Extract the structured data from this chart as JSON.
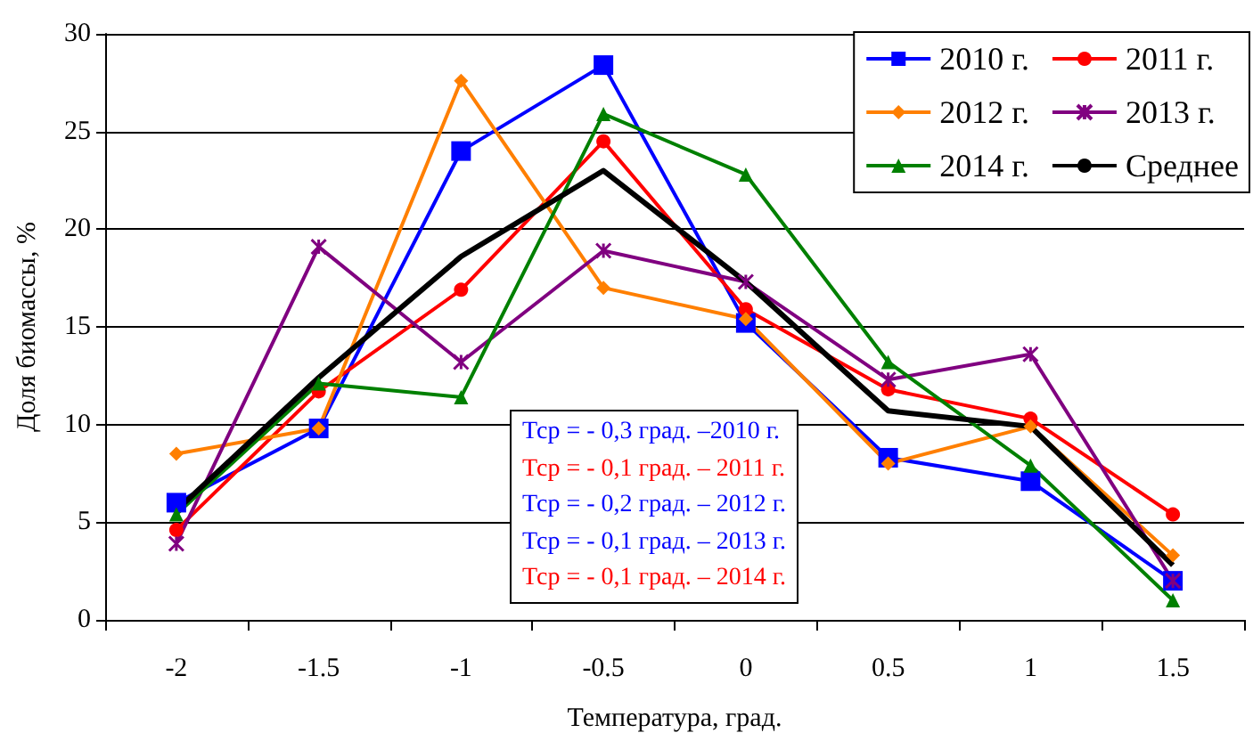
{
  "chart_data": {
    "type": "line",
    "xlabel": "Температура, град.",
    "ylabel": "Доля биомассы, %",
    "categories": [
      "-2",
      "-1.5",
      "-1",
      "-0.5",
      "0",
      "0.5",
      "1",
      "1.5"
    ],
    "series": [
      {
        "name": "2010 г.",
        "color": "#0000ff",
        "marker": "square",
        "values": [
          6.0,
          9.8,
          24.0,
          28.4,
          15.2,
          8.3,
          7.1,
          2.0
        ]
      },
      {
        "name": "2011 г.",
        "color": "#ff0000",
        "marker": "circle",
        "values": [
          4.6,
          11.7,
          16.9,
          24.5,
          15.9,
          11.8,
          10.3,
          5.4
        ]
      },
      {
        "name": "2012 г.",
        "color": "#ff7f00",
        "marker": "diamond",
        "values": [
          8.5,
          9.8,
          27.6,
          17.0,
          15.4,
          8.0,
          9.9,
          3.3
        ]
      },
      {
        "name": "2013 г.",
        "color": "#800080",
        "marker": "cross",
        "values": [
          3.9,
          19.1,
          13.2,
          18.9,
          17.3,
          12.3,
          13.6,
          2.0
        ]
      },
      {
        "name": "2014 г.",
        "color": "#008000",
        "marker": "triangle",
        "values": [
          5.4,
          12.1,
          11.4,
          25.9,
          22.8,
          13.2,
          7.9,
          1.0
        ]
      },
      {
        "name": "Среднее",
        "color": "#000000",
        "marker": "none",
        "values": [
          5.6,
          12.4,
          18.6,
          23.0,
          17.3,
          10.7,
          9.9,
          2.8
        ]
      }
    ],
    "ylim": [
      0,
      30
    ],
    "yticks": [
      0,
      5,
      10,
      15,
      20,
      25,
      30
    ],
    "grid": "y",
    "legend": "top right",
    "annotations": [
      "Тср = - 0,3 град. –2010 г.",
      "Тср = - 0,1 град. – 2011 г.",
      "Тср = - 0,2 град. – 2012 г.",
      "Тср = - 0,1 град. – 2013 г.",
      "Тср = - 0,1 град. – 2014 г."
    ]
  }
}
